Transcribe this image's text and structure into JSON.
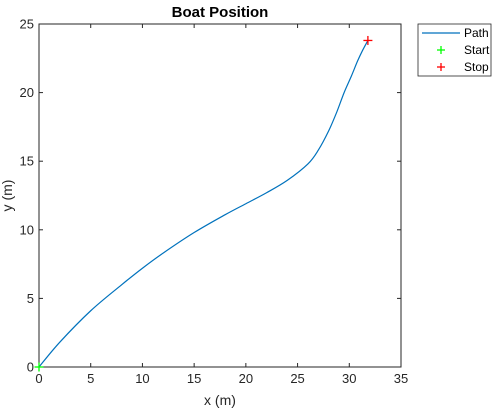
{
  "chart_data": {
    "type": "line",
    "title": "Boat Position",
    "xlabel": "x (m)",
    "ylabel": "y (m)",
    "xlim": [
      0,
      35
    ],
    "ylim": [
      0,
      25
    ],
    "xticks": [
      0,
      5,
      10,
      15,
      20,
      25,
      30,
      35
    ],
    "yticks": [
      0,
      5,
      10,
      15,
      20,
      25
    ],
    "grid": false,
    "legend_position": "outside top-right",
    "series": [
      {
        "name": "Path",
        "kind": "line",
        "color": "#0072bd",
        "x": [
          0,
          2,
          5,
          8,
          10,
          12,
          15,
          18,
          20,
          22,
          24,
          26,
          27,
          28,
          28.8,
          29.5,
          30.2,
          30.8,
          31.3,
          31.8
        ],
        "y": [
          0,
          1.8,
          4.1,
          6.0,
          7.2,
          8.3,
          9.8,
          11.1,
          11.9,
          12.7,
          13.6,
          14.8,
          15.8,
          17.2,
          18.6,
          20.0,
          21.2,
          22.3,
          23.1,
          23.8
        ]
      },
      {
        "name": "Start",
        "kind": "marker",
        "marker": "+",
        "color": "#00ff00",
        "x": [
          0
        ],
        "y": [
          0
        ]
      },
      {
        "name": "Stop",
        "kind": "marker",
        "marker": "+",
        "color": "#ff0000",
        "x": [
          31.8
        ],
        "y": [
          23.8
        ]
      }
    ]
  }
}
